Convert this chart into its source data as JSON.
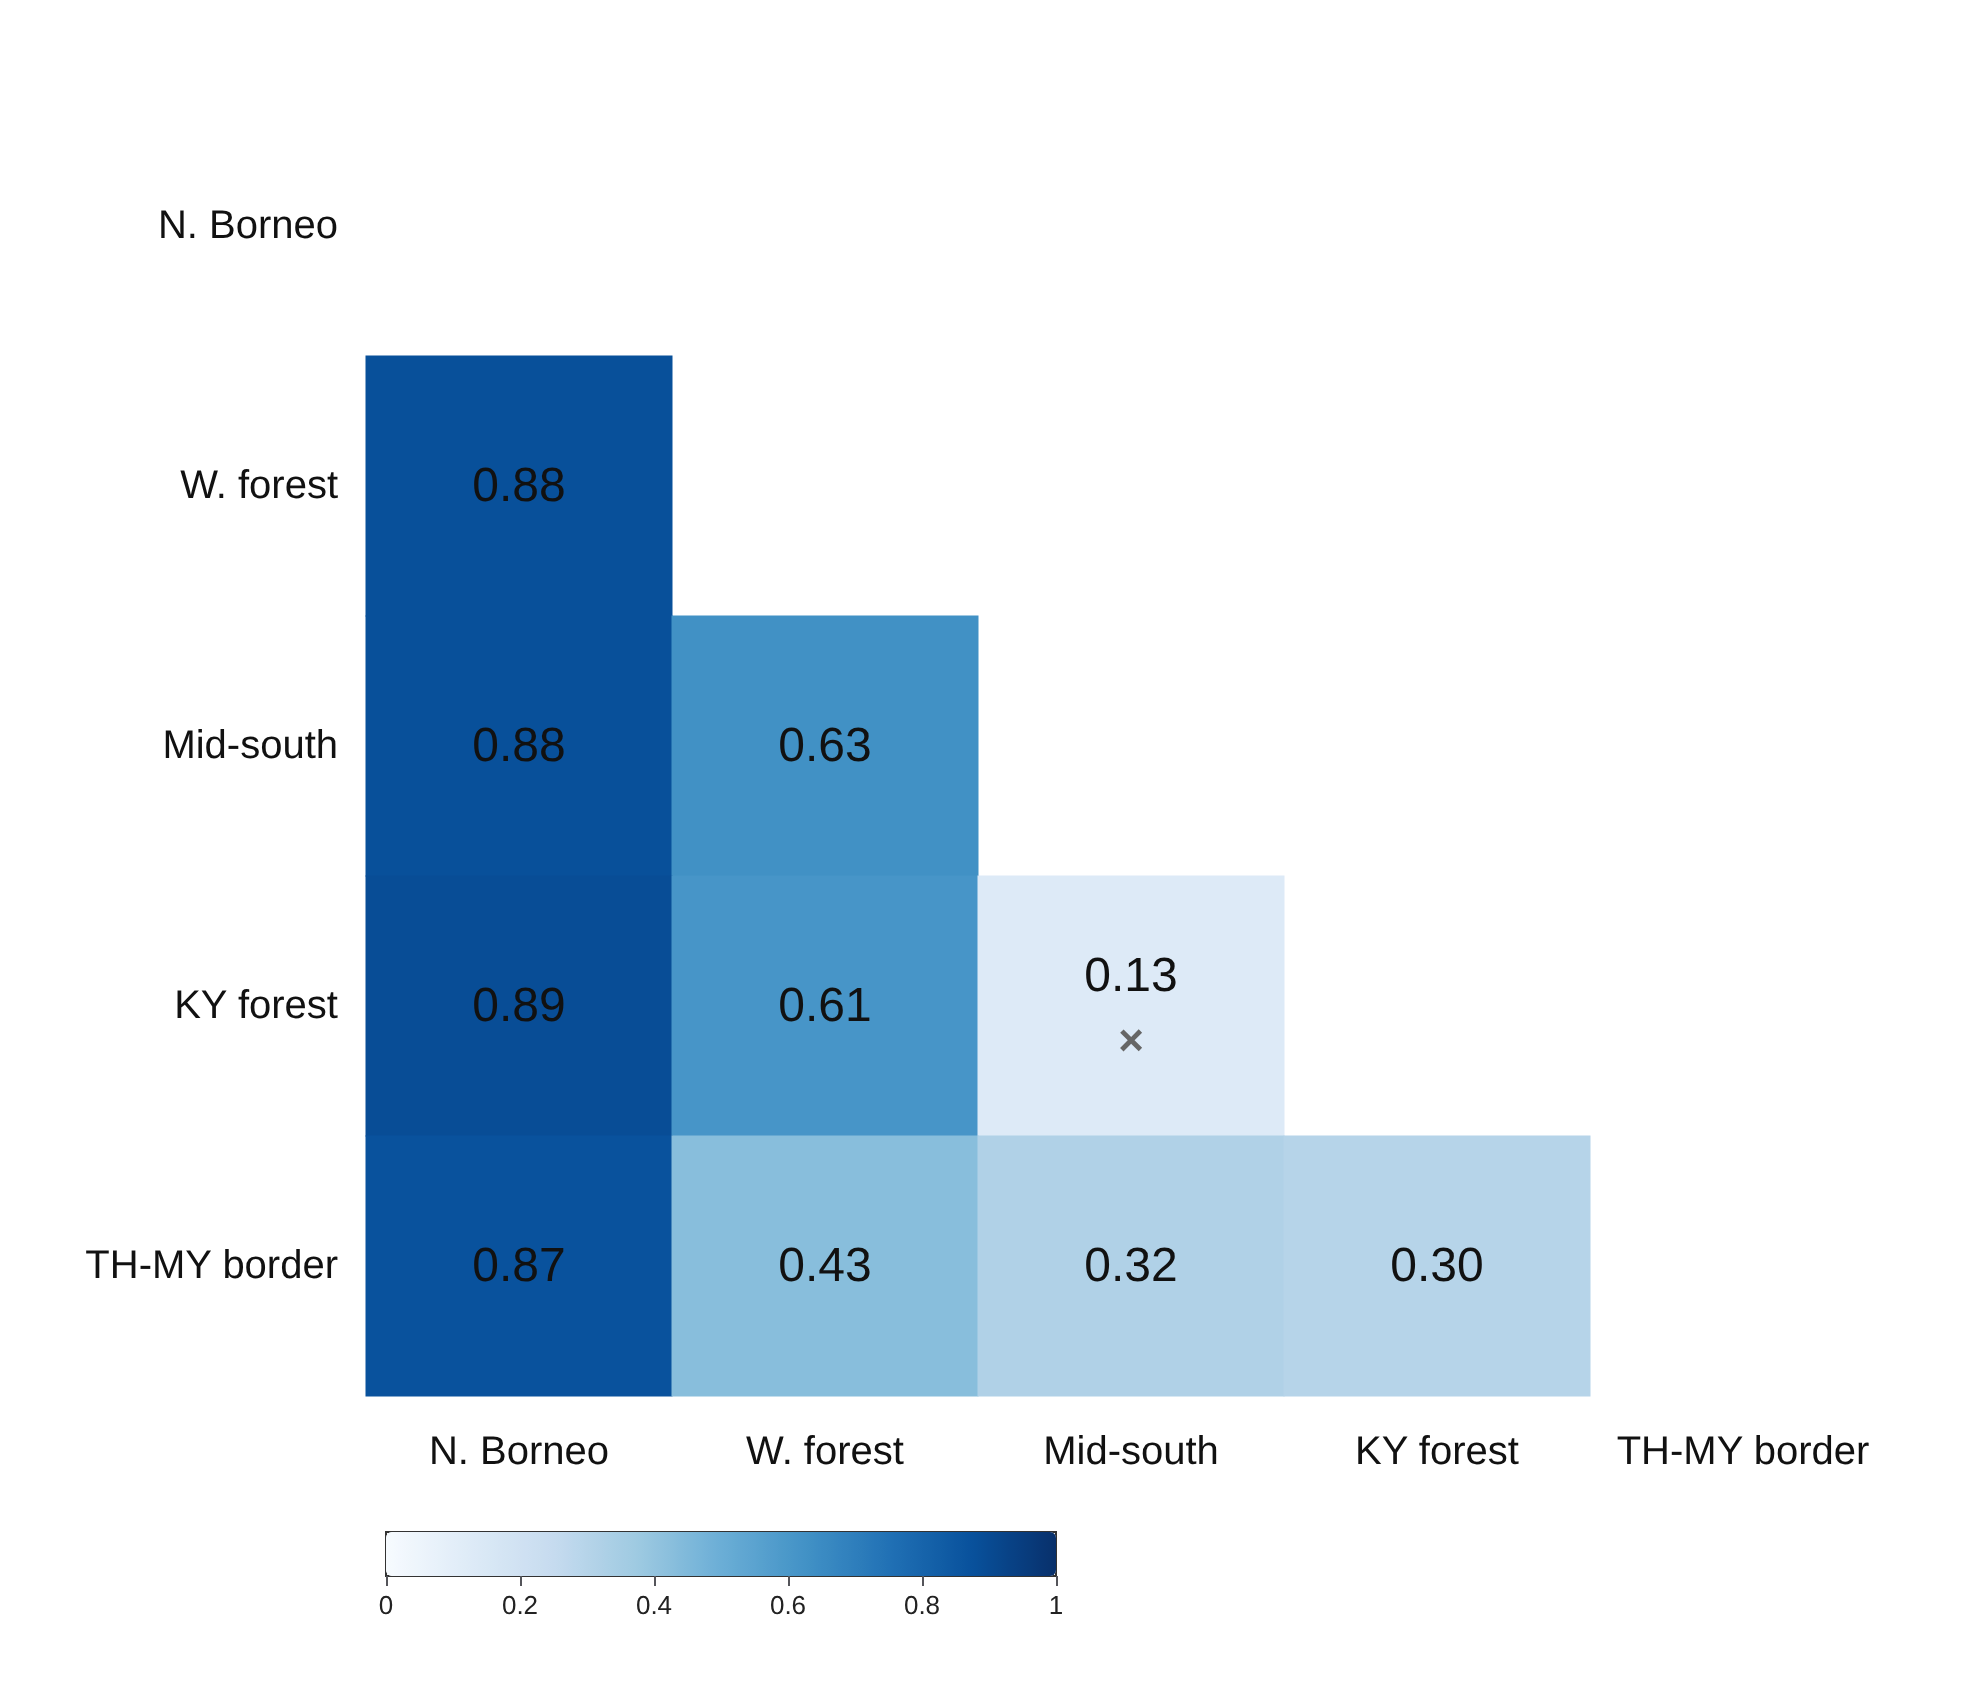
{
  "chart_data": {
    "type": "heatmap",
    "categories": [
      "N. Borneo",
      "W. forest",
      "Mid-south",
      "KY forest",
      "TH-MY border"
    ],
    "y_categories": [
      "N. Borneo",
      "W. forest",
      "Mid-south",
      "KY forest",
      "TH-MY border"
    ],
    "cells": [
      [
        null,
        null,
        null,
        null,
        null
      ],
      [
        0.88,
        null,
        null,
        null,
        null
      ],
      [
        0.88,
        0.63,
        null,
        null,
        null
      ],
      [
        0.89,
        0.61,
        0.13,
        null,
        null
      ],
      [
        0.87,
        0.43,
        0.32,
        0.3,
        null
      ]
    ],
    "cell_labels": [
      [
        null,
        null,
        null,
        null,
        null
      ],
      [
        "0.88",
        null,
        null,
        null,
        null
      ],
      [
        "0.88",
        "0.63",
        null,
        null,
        null
      ],
      [
        "0.89",
        "0.61",
        "0.13\n×",
        null,
        null
      ],
      [
        "0.87",
        "0.43",
        "0.32",
        "0.30",
        null
      ]
    ],
    "clim": [
      0,
      1
    ],
    "cticks": [
      0,
      0.2,
      0.4,
      0.6,
      0.8,
      1
    ]
  }
}
